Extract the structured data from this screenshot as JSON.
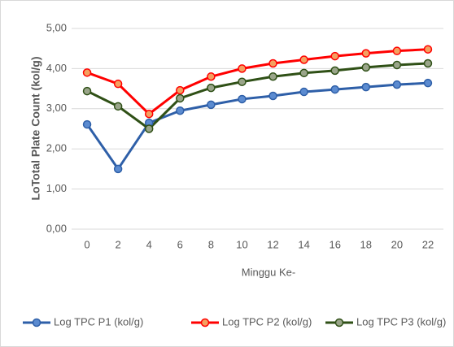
{
  "chart_data": {
    "type": "line",
    "x_label": "Minggu Ke-",
    "y_label": "LoTotal Plate Count (kol/g)",
    "categories": [
      "0",
      "2",
      "4",
      "6",
      "8",
      "10",
      "12",
      "14",
      "16",
      "18",
      "20",
      "22"
    ],
    "series": [
      {
        "name": "Log TPC P1 (kol/g)",
        "color": "#2e5fa8",
        "marker_fill": "#5b8bd0",
        "values": [
          2.61,
          1.5,
          2.65,
          2.95,
          3.1,
          3.24,
          3.32,
          3.42,
          3.48,
          3.54,
          3.6,
          3.64
        ]
      },
      {
        "name": "Log TPC P2 (kol/g)",
        "color": "#ff0000",
        "marker_fill": "#f4a060",
        "values": [
          3.9,
          3.62,
          2.87,
          3.46,
          3.8,
          4.0,
          4.13,
          4.22,
          4.31,
          4.38,
          4.44,
          4.48
        ]
      },
      {
        "name": "Log TPC P3 (kol/g)",
        "color": "#2f5016",
        "marker_fill": "#9aa58a",
        "values": [
          3.44,
          3.06,
          2.5,
          3.26,
          3.52,
          3.67,
          3.8,
          3.89,
          3.95,
          4.03,
          4.09,
          4.13
        ]
      }
    ],
    "ylim": [
      0,
      5
    ],
    "yticks": [
      {
        "value": 0,
        "label": "0,00"
      },
      {
        "value": 1,
        "label": "1,00"
      },
      {
        "value": 2,
        "label": "2,00"
      },
      {
        "value": 3,
        "label": "3,00"
      },
      {
        "value": 4,
        "label": "4,00"
      },
      {
        "value": 5,
        "label": "5,00"
      }
    ],
    "grid": true,
    "legend": "bottom"
  }
}
